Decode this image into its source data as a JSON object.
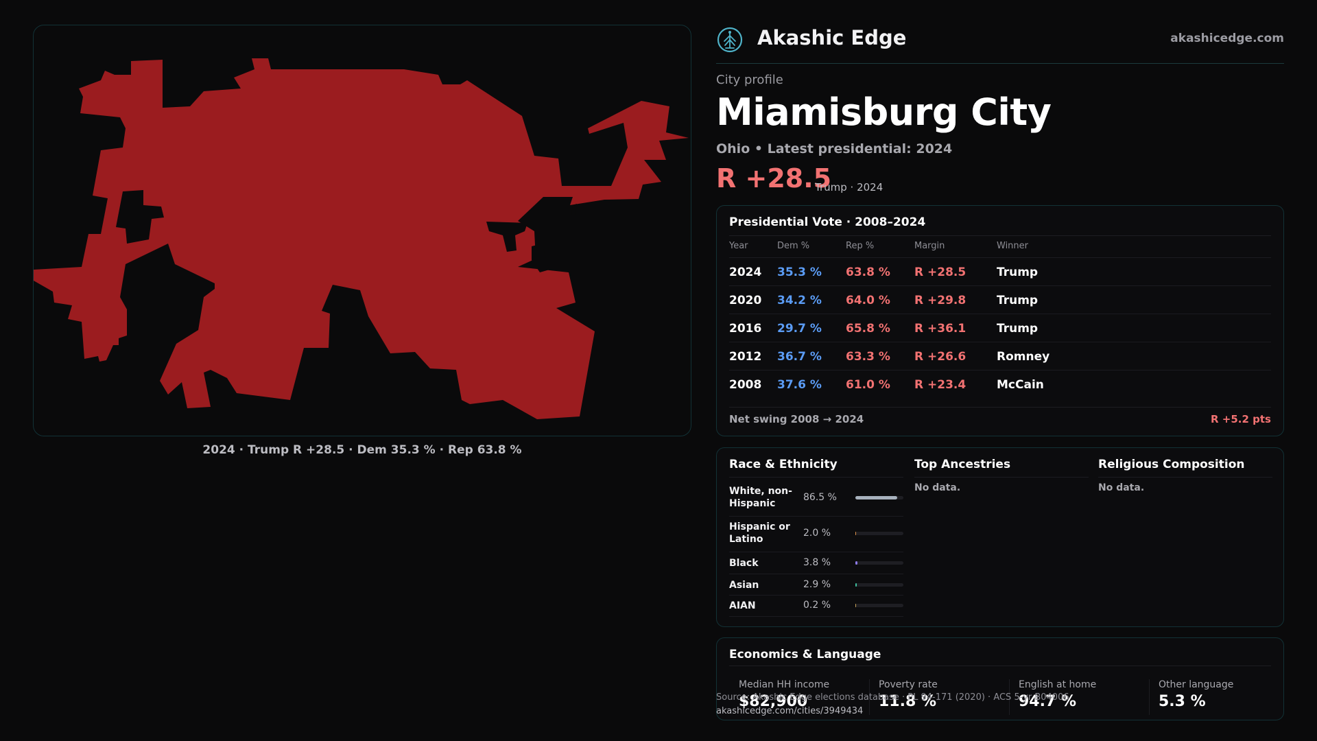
{
  "brand": {
    "name": "Akashic Edge",
    "site": "akashicedge.com",
    "logo_icon": "akashic-tree-logo-icon"
  },
  "profile": {
    "eyebrow": "City profile",
    "city": "Miamisburg City",
    "meta": "Ohio • Latest presidential: 2024",
    "margin": "R +28.5",
    "margin_note": "Trump · 2024"
  },
  "map": {
    "caption": "2024 · Trump R +28.5 · Dem 35.3 % · Rep 63.8 %",
    "fill_color": "#9b1c1f",
    "border_color": "#123236"
  },
  "vote": {
    "title": "Presidential Vote · 2008–2024",
    "headers": {
      "year": "Year",
      "dem": "Dem %",
      "rep": "Rep %",
      "margin": "Margin",
      "winner": "Winner"
    },
    "rows": [
      {
        "year": "2024",
        "dem": "35.3 %",
        "rep": "63.8 %",
        "margin": "R +28.5",
        "winner": "Trump"
      },
      {
        "year": "2020",
        "dem": "34.2 %",
        "rep": "64.0 %",
        "margin": "R +29.8",
        "winner": "Trump"
      },
      {
        "year": "2016",
        "dem": "29.7 %",
        "rep": "65.8 %",
        "margin": "R +36.1",
        "winner": "Trump"
      },
      {
        "year": "2012",
        "dem": "36.7 %",
        "rep": "63.3 %",
        "margin": "R +26.6",
        "winner": "Romney"
      },
      {
        "year": "2008",
        "dem": "37.6 %",
        "rep": "61.0 %",
        "margin": "R +23.4",
        "winner": "McCain"
      }
    ],
    "swing_label": "Net swing 2008 → 2024",
    "swing_value": "R +5.2 pts"
  },
  "race": {
    "title": "Race & Ethnicity",
    "items": [
      {
        "label": "White, non-Hispanic",
        "value": "86.5 %",
        "pct": 86.5,
        "color": "#a8b2bd"
      },
      {
        "label": "Hispanic or Latino",
        "value": "2.0 %",
        "pct": 2.0,
        "color": "#e0924a"
      },
      {
        "label": "Black",
        "value": "3.8 %",
        "pct": 3.8,
        "color": "#8d7bea"
      },
      {
        "label": "Asian",
        "value": "2.9 %",
        "pct": 2.9,
        "color": "#3fc1a0"
      },
      {
        "label": "AIAN",
        "value": "0.2 %",
        "pct": 0.2,
        "color": "#c9a45a"
      }
    ]
  },
  "ancestry": {
    "title": "Top Ancestries",
    "empty": "No data."
  },
  "religion": {
    "title": "Religious Composition",
    "empty": "No data."
  },
  "econ": {
    "title": "Economics & Language",
    "stats": [
      {
        "label": "Median HH income",
        "value": "$82,900"
      },
      {
        "label": "Poverty rate",
        "value": "11.8 %"
      },
      {
        "label": "English at home",
        "value": "94.7 %"
      },
      {
        "label": "Other language",
        "value": "5.3 %"
      }
    ]
  },
  "source": {
    "text": "Source: Akashic Edge elections database · PL 94-171 (2020) · ACS 5-yr B04006",
    "url": "akashicedge.com/cities/3949434"
  }
}
